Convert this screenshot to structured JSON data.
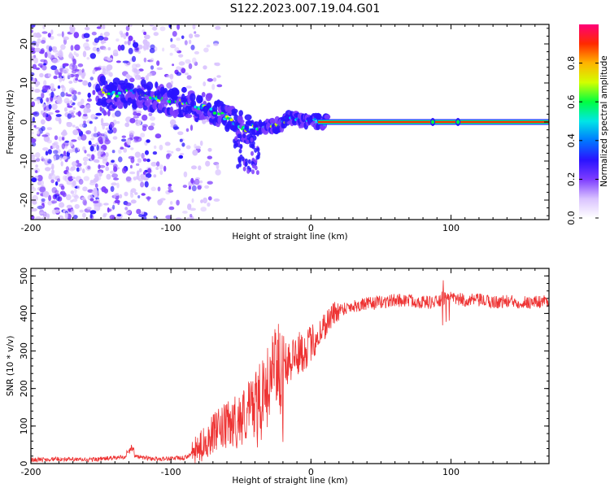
{
  "title": "S122.2023.007.19.04.G01",
  "chart_data": [
    {
      "type": "heatmap",
      "xlabel": "Height of straight line (km)",
      "ylabel": "Frequency (Hz)",
      "xlim": [
        -200,
        170
      ],
      "ylim": [
        -25,
        25
      ],
      "x_ticks": [
        -200,
        -100,
        0,
        100
      ],
      "y_ticks": [
        -20,
        -10,
        0,
        10,
        20
      ],
      "colorbar": {
        "label": "Normalized spectral amplitude",
        "range": [
          0,
          1
        ],
        "ticks": [
          "0.0",
          "0.2",
          "0.4",
          "0.6",
          "0.8"
        ],
        "tick_values": [
          0,
          0.2,
          0.4,
          0.6,
          0.8
        ],
        "colormap": [
          "#ffffff",
          "#d9c2ff",
          "#7d3cff",
          "#2a13ff",
          "#0078ff",
          "#00e6e6",
          "#00ff41",
          "#d2ff00",
          "#ffb400",
          "#ff2a00",
          "#ff0078"
        ]
      },
      "ridge": {
        "x": [
          -150,
          -140,
          -130,
          -120,
          -110,
          -100,
          -90,
          -80,
          -70,
          -60,
          -50,
          -45,
          -40,
          -35,
          -30,
          -25,
          -20,
          -15,
          -10,
          -5,
          0,
          5,
          10,
          50,
          100,
          170
        ],
        "y": [
          8,
          7,
          8,
          7,
          6,
          5,
          5,
          4,
          3,
          1,
          -1,
          -2,
          -1,
          -2,
          -1,
          -1,
          0,
          1,
          1,
          0,
          1,
          0,
          0,
          0,
          0,
          0
        ]
      }
    },
    {
      "type": "line",
      "xlabel": "Height of straight line (km)",
      "ylabel": "SNR (10 * v/v)",
      "xlim": [
        -200,
        170
      ],
      "ylim": [
        0,
        520
      ],
      "x_ticks": [
        -200,
        -100,
        0,
        100
      ],
      "y_ticks": [
        0,
        100,
        200,
        300,
        400,
        500
      ],
      "color": "#ee3333",
      "series": [
        {
          "x": [
            -200,
            -180,
            -160,
            -140,
            -130,
            -128,
            -125,
            -110,
            -100,
            -90,
            -80,
            -70,
            -60,
            -50,
            -40,
            -30,
            -25,
            -20,
            -15,
            -10,
            -5,
            0,
            5,
            10,
            15,
            20,
            25,
            30,
            40,
            50,
            60,
            70,
            80,
            90,
            95,
            100,
            110,
            120,
            130,
            140,
            150,
            160,
            170
          ],
          "values": [
            10,
            12,
            10,
            15,
            20,
            35,
            18,
            12,
            14,
            15,
            40,
            80,
            100,
            120,
            160,
            220,
            260,
            270,
            280,
            290,
            300,
            320,
            340,
            370,
            395,
            410,
            415,
            420,
            425,
            430,
            435,
            435,
            430,
            430,
            440,
            440,
            435,
            435,
            430,
            432,
            430,
            430,
            435
          ]
        }
      ]
    }
  ]
}
